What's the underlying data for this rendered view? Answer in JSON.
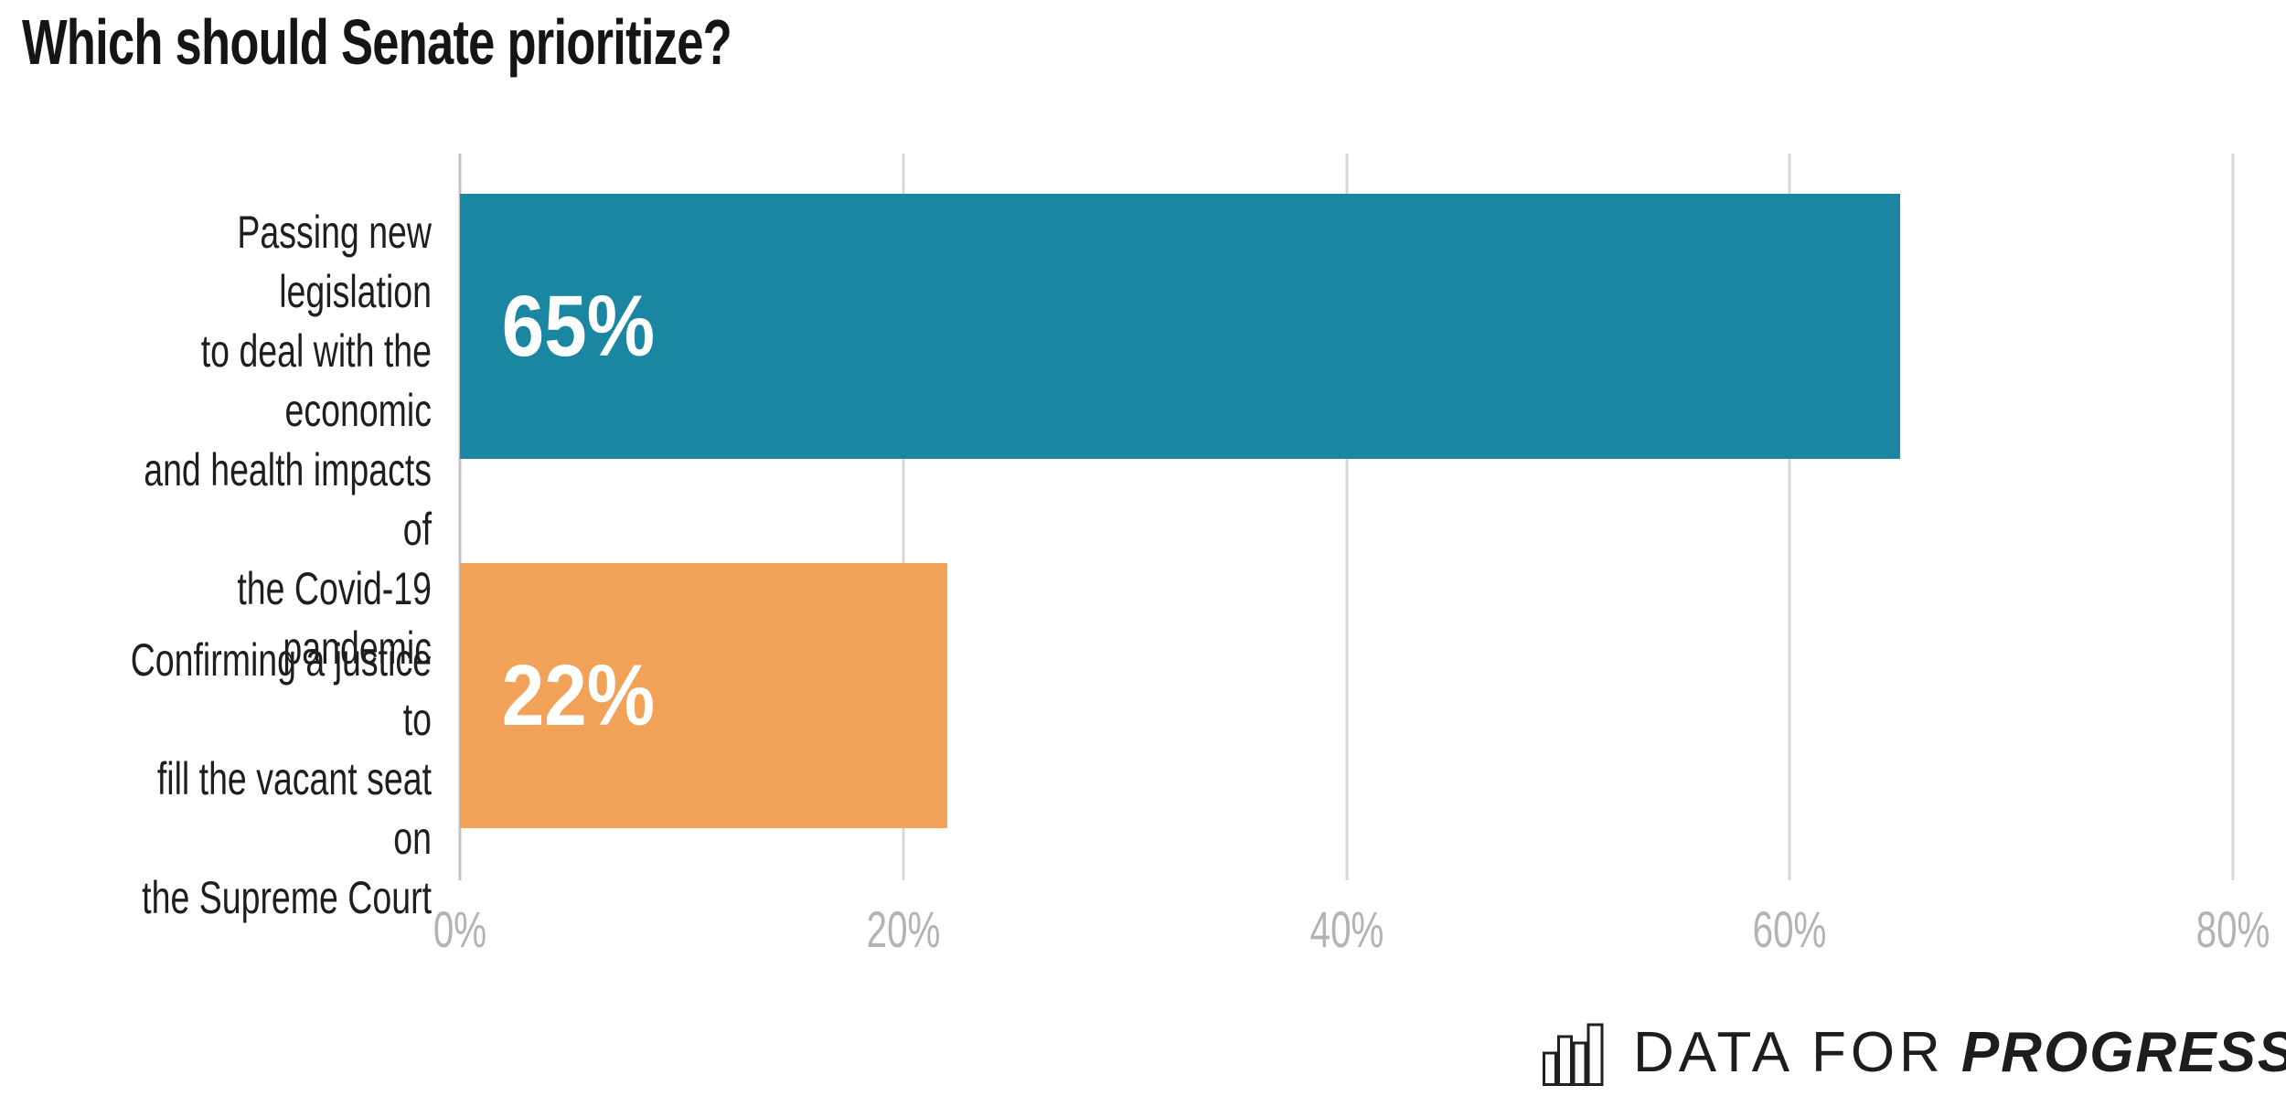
{
  "title": "Which should Senate prioritize?",
  "chart_data": {
    "type": "bar",
    "orientation": "horizontal",
    "categories": [
      "Passing new legislation to deal with the economic and health impacts of the Covid-19 pandemic",
      "Confirming a justice to fill the vacant seat on the Supreme Court"
    ],
    "values": [
      65,
      22
    ],
    "value_labels": [
      "65%",
      "22%"
    ],
    "bar_colors": [
      "#1a86a2",
      "#f2a159"
    ],
    "xlim": [
      0,
      80
    ],
    "x_tick_values": [
      0,
      20,
      40,
      60,
      80
    ],
    "x_tick_labels": [
      "0%",
      "20%",
      "40%",
      "60%",
      "80%"
    ],
    "grid": "vertical-gridlines-on",
    "legend": "none",
    "value_label_position": "inside-left",
    "category_labels_multiline": [
      "Passing new legislation\nto deal with the economic\nand health impacts of\nthe Covid-19 pandemic",
      "Confirming a justice to\nfill the vacant seat on\nthe Supreme Court"
    ]
  },
  "colors": {
    "background": "#ffffff",
    "title_text": "#151515",
    "category_text": "#1e1e1e",
    "tick_text": "#b3b3b3",
    "gridline": "#d7d7d7",
    "axis_line": "#c2c2c2",
    "bar_value_text": "#ffffff",
    "teal": "#1a86a2",
    "orange": "#f2a159",
    "logo_black": "#1d1d1d"
  },
  "branding": {
    "icon": "bar-chart-icon",
    "text_light": "DATA FOR",
    "text_bold": "PROGRESS"
  }
}
